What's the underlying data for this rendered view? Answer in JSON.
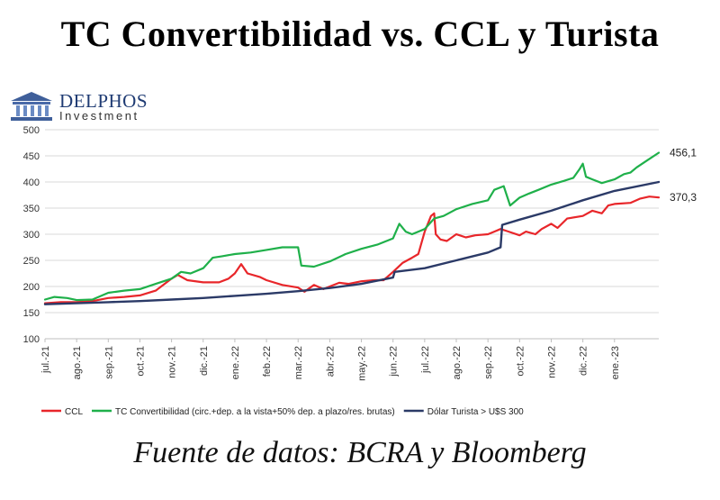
{
  "title": "TC Convertibilidad vs. CCL y Turista",
  "logo": {
    "name": "DELPHOS",
    "subtitle": "Investment"
  },
  "source": "Fuente de datos: BCRA y Bloomberg",
  "chart_data": {
    "type": "line",
    "title": "TC Convertibilidad vs. CCL y Turista",
    "xlabel": "",
    "ylabel": "",
    "ylim": [
      100,
      500
    ],
    "yticks": [
      100,
      150,
      200,
      250,
      300,
      350,
      400,
      450,
      500
    ],
    "xlim": [
      0,
      19.4
    ],
    "categories": [
      "jul.-21",
      "ago.-21",
      "sep.-21",
      "oct.-21",
      "nov.-21",
      "dic.-21",
      "ene.-22",
      "feb.-22",
      "mar.-22",
      "abr.-22",
      "may.-22",
      "jun.-22",
      "jul.-22",
      "ago.-22",
      "sep.-22",
      "oct.-22",
      "nov.-22",
      "dic.-22",
      "ene.-23"
    ],
    "x": [
      0,
      1,
      2,
      3,
      4,
      5,
      6,
      7,
      8,
      9,
      10,
      11,
      12,
      13,
      14,
      15,
      16,
      17,
      18
    ],
    "grid": true,
    "legend_position": "bottom",
    "series": [
      {
        "name": "CCL",
        "color": "#e8262a",
        "end_label": "370,3",
        "points": [
          [
            0,
            168
          ],
          [
            0.5,
            170
          ],
          [
            1,
            170
          ],
          [
            1.5,
            172
          ],
          [
            2,
            178
          ],
          [
            2.5,
            180
          ],
          [
            3,
            183
          ],
          [
            3.5,
            192
          ],
          [
            4,
            215
          ],
          [
            4.2,
            222
          ],
          [
            4.5,
            212
          ],
          [
            5,
            208
          ],
          [
            5.5,
            208
          ],
          [
            5.8,
            215
          ],
          [
            6,
            225
          ],
          [
            6.2,
            243
          ],
          [
            6.4,
            225
          ],
          [
            6.8,
            218
          ],
          [
            7,
            212
          ],
          [
            7.5,
            203
          ],
          [
            8,
            198
          ],
          [
            8.2,
            190
          ],
          [
            8.5,
            203
          ],
          [
            8.8,
            195
          ],
          [
            9,
            200
          ],
          [
            9.3,
            207
          ],
          [
            9.6,
            205
          ],
          [
            10,
            210
          ],
          [
            10.4,
            212
          ],
          [
            10.7,
            212
          ],
          [
            11,
            228
          ],
          [
            11.3,
            245
          ],
          [
            11.6,
            255
          ],
          [
            11.8,
            262
          ],
          [
            12,
            305
          ],
          [
            12.2,
            335
          ],
          [
            12.3,
            340
          ],
          [
            12.35,
            300
          ],
          [
            12.5,
            290
          ],
          [
            12.7,
            287
          ],
          [
            13,
            300
          ],
          [
            13.3,
            294
          ],
          [
            13.6,
            298
          ],
          [
            14,
            300
          ],
          [
            14.2,
            305
          ],
          [
            14.4,
            310
          ],
          [
            14.6,
            306
          ],
          [
            15,
            298
          ],
          [
            15.2,
            305
          ],
          [
            15.5,
            300
          ],
          [
            15.7,
            310
          ],
          [
            16,
            320
          ],
          [
            16.2,
            312
          ],
          [
            16.5,
            330
          ],
          [
            17,
            335
          ],
          [
            17.3,
            345
          ],
          [
            17.6,
            340
          ],
          [
            17.8,
            355
          ],
          [
            18,
            358
          ],
          [
            18.5,
            360
          ],
          [
            18.8,
            368
          ],
          [
            19.1,
            372
          ],
          [
            19.4,
            370.3
          ]
        ]
      },
      {
        "name": "TC Convertibilidad (circ.+dep. a la vista+50% dep. a plazo/res. brutas)",
        "color": "#1fb04a",
        "end_label": "456,1",
        "points": [
          [
            0,
            175
          ],
          [
            0.3,
            180
          ],
          [
            0.7,
            178
          ],
          [
            1,
            174
          ],
          [
            1.5,
            175
          ],
          [
            2,
            188
          ],
          [
            2.5,
            192
          ],
          [
            3,
            195
          ],
          [
            3.5,
            205
          ],
          [
            4,
            215
          ],
          [
            4.3,
            228
          ],
          [
            4.6,
            225
          ],
          [
            5,
            235
          ],
          [
            5.3,
            255
          ],
          [
            5.6,
            258
          ],
          [
            6,
            262
          ],
          [
            6.5,
            265
          ],
          [
            7,
            270
          ],
          [
            7.5,
            275
          ],
          [
            8,
            275
          ],
          [
            8.1,
            240
          ],
          [
            8.5,
            238
          ],
          [
            9,
            248
          ],
          [
            9.5,
            262
          ],
          [
            10,
            272
          ],
          [
            10.5,
            280
          ],
          [
            11,
            292
          ],
          [
            11.2,
            320
          ],
          [
            11.4,
            305
          ],
          [
            11.6,
            300
          ],
          [
            12,
            310
          ],
          [
            12.3,
            330
          ],
          [
            12.6,
            335
          ],
          [
            13,
            348
          ],
          [
            13.5,
            358
          ],
          [
            14,
            365
          ],
          [
            14.2,
            385
          ],
          [
            14.5,
            392
          ],
          [
            14.7,
            355
          ],
          [
            15,
            370
          ],
          [
            15.3,
            378
          ],
          [
            15.6,
            385
          ],
          [
            16,
            395
          ],
          [
            16.4,
            402
          ],
          [
            16.7,
            408
          ],
          [
            16.9,
            425
          ],
          [
            17,
            435
          ],
          [
            17.1,
            410
          ],
          [
            17.3,
            405
          ],
          [
            17.6,
            398
          ],
          [
            18,
            405
          ],
          [
            18.3,
            415
          ],
          [
            18.5,
            418
          ],
          [
            18.7,
            428
          ],
          [
            19,
            440
          ],
          [
            19.4,
            456.1
          ]
        ]
      },
      {
        "name": "Dólar Turista > U$S 300",
        "color": "#2b3a67",
        "points": [
          [
            0,
            166
          ],
          [
            1,
            168
          ],
          [
            2,
            170
          ],
          [
            3,
            172
          ],
          [
            4,
            175
          ],
          [
            5,
            178
          ],
          [
            6,
            182
          ],
          [
            7,
            186
          ],
          [
            8,
            191
          ],
          [
            9,
            197
          ],
          [
            10,
            205
          ],
          [
            10.5,
            211
          ],
          [
            11,
            217
          ],
          [
            11.05,
            228
          ],
          [
            12,
            235
          ],
          [
            13,
            250
          ],
          [
            14,
            265
          ],
          [
            14.4,
            275
          ],
          [
            14.45,
            318
          ],
          [
            15,
            328
          ],
          [
            16,
            345
          ],
          [
            17,
            365
          ],
          [
            18,
            383
          ],
          [
            19.4,
            400
          ]
        ]
      }
    ]
  }
}
